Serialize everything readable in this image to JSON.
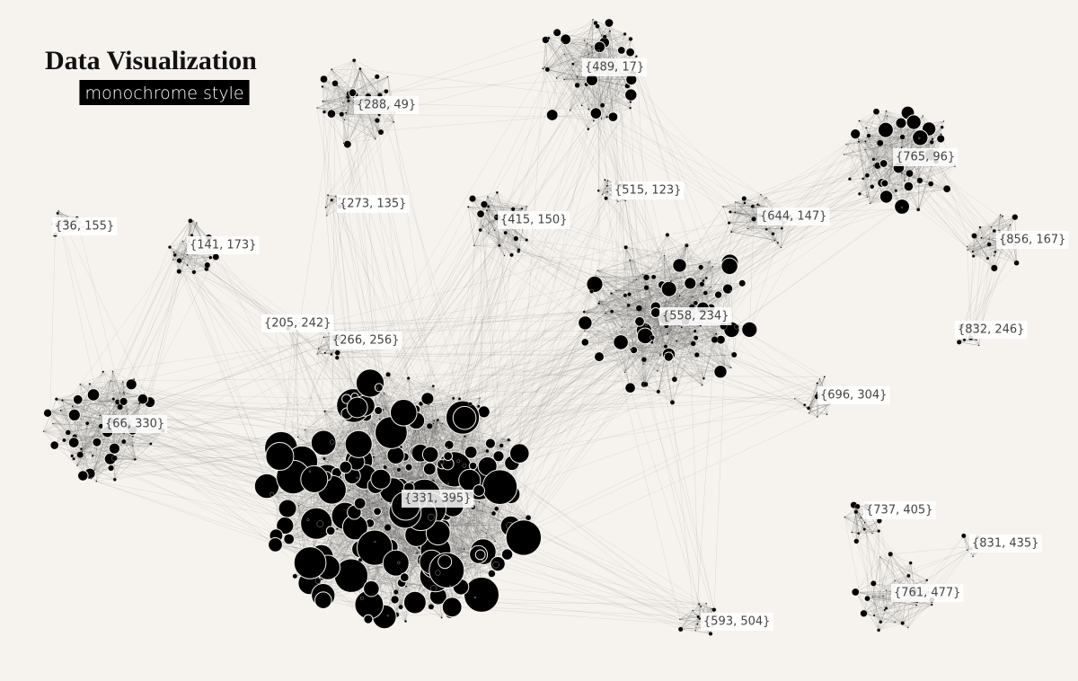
{
  "title": "Data Visualization",
  "subtitle": "monochrome style",
  "clusters": [
    {
      "label": "{489, 17}"
    },
    {
      "label": "{288, 49}"
    },
    {
      "label": "{765, 96}"
    },
    {
      "label": "{515, 123}"
    },
    {
      "label": "{273, 135}"
    },
    {
      "label": "{415, 150}"
    },
    {
      "label": "{644, 147}"
    },
    {
      "label": "{36, 155}"
    },
    {
      "label": "{141, 173}"
    },
    {
      "label": "{856, 167}"
    },
    {
      "label": "{558, 234}"
    },
    {
      "label": "{205, 242}"
    },
    {
      "label": "{266, 256}"
    },
    {
      "label": "{832, 246}"
    },
    {
      "label": "{696, 304}"
    },
    {
      "label": "{66, 330}"
    },
    {
      "label": "{331, 395}"
    },
    {
      "label": "{737, 405}"
    },
    {
      "label": "{831, 435}"
    },
    {
      "label": "{761, 477}"
    },
    {
      "label": "{593, 504}"
    }
  ]
}
